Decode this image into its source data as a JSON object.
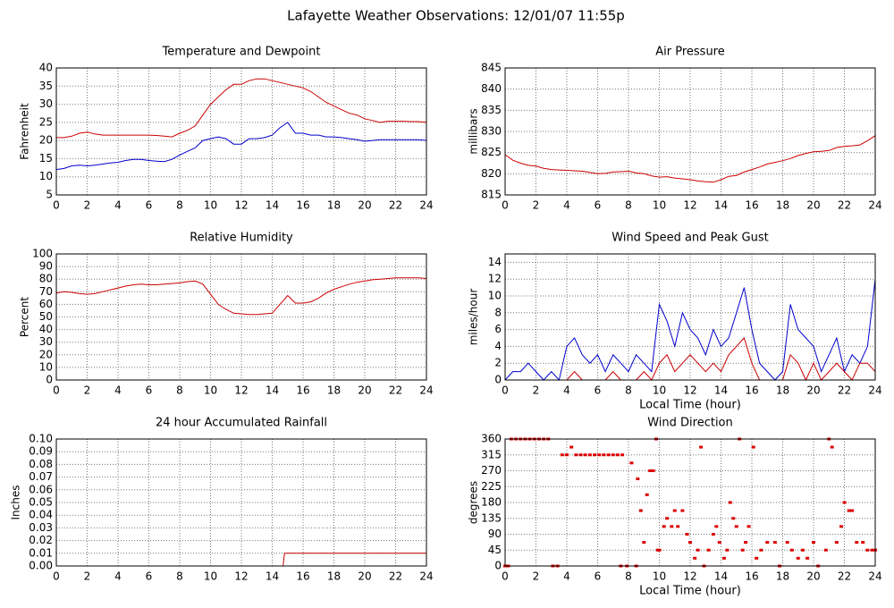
{
  "title": "Lafayette Weather Observations: 12/01/07 11:55p",
  "chart_data": [
    {
      "type": "line",
      "title": "Temperature and Dewpoint",
      "ylabel": "Fahrenheit",
      "xlim": [
        0,
        24
      ],
      "xticks": [
        0,
        2,
        4,
        6,
        8,
        10,
        12,
        14,
        16,
        18,
        20,
        22,
        24
      ],
      "ylim": [
        5,
        40
      ],
      "yticks": [
        5,
        10,
        15,
        20,
        25,
        30,
        35,
        40
      ],
      "grid": true,
      "x": [
        0,
        0.5,
        1,
        1.5,
        2,
        2.5,
        3,
        3.5,
        4,
        4.5,
        5,
        5.5,
        6,
        6.5,
        7,
        7.5,
        8,
        8.5,
        9,
        9.5,
        10,
        10.5,
        11,
        11.5,
        12,
        12.5,
        13,
        13.5,
        14,
        14.5,
        15,
        15.5,
        16,
        16.5,
        17,
        17.5,
        18,
        18.5,
        19,
        19.5,
        20,
        20.5,
        21,
        21.5,
        22,
        22.5,
        23,
        23.5,
        24
      ],
      "series": [
        {
          "color": "#cc0000",
          "values": [
            20.8,
            20.8,
            21.2,
            22,
            22.3,
            21.8,
            21.5,
            21.5,
            21.5,
            21.5,
            21.5,
            21.5,
            21.5,
            21.4,
            21.2,
            21,
            22,
            22.8,
            24,
            27,
            30,
            32,
            34,
            35.5,
            35.5,
            36.5,
            37,
            37,
            36.5,
            36,
            35.5,
            35,
            34.5,
            33.5,
            32,
            30.5,
            29.5,
            28.5,
            27.5,
            27,
            26,
            25.5,
            25,
            25.3,
            25.3,
            25.3,
            25.2,
            25.2,
            25
          ]
        },
        {
          "color": "#0000cc",
          "values": [
            12,
            12.3,
            13,
            13.2,
            13,
            13.2,
            13.5,
            13.8,
            14,
            14.5,
            14.8,
            14.8,
            14.5,
            14.3,
            14.2,
            14.8,
            16,
            17,
            18,
            20,
            20.5,
            21,
            20.5,
            19,
            19,
            20.5,
            20.5,
            20.8,
            21.5,
            23.5,
            25,
            22,
            22,
            21.5,
            21.5,
            21,
            21,
            20.8,
            20.5,
            20.2,
            19.8,
            20,
            20.2,
            20.2,
            20.2,
            20.2,
            20.2,
            20.2,
            20
          ]
        }
      ]
    },
    {
      "type": "line",
      "title": "Air Pressure",
      "ylabel": "millibars",
      "xlim": [
        0,
        24
      ],
      "xticks": [
        0,
        2,
        4,
        6,
        8,
        10,
        12,
        14,
        16,
        18,
        20,
        22,
        24
      ],
      "ylim": [
        815,
        845
      ],
      "yticks": [
        815,
        820,
        825,
        830,
        835,
        840,
        845
      ],
      "grid": true,
      "x": [
        0,
        0.5,
        1,
        1.5,
        2,
        2.5,
        3,
        3.5,
        4,
        4.5,
        5,
        5.5,
        6,
        6.5,
        7,
        7.5,
        8,
        8.5,
        9,
        9.5,
        10,
        10.5,
        11,
        11.5,
        12,
        12.5,
        13,
        13.5,
        14,
        14.5,
        15,
        15.5,
        16,
        16.5,
        17,
        17.5,
        18,
        18.5,
        19,
        19.5,
        20,
        20.5,
        21,
        21.5,
        22,
        22.5,
        23,
        23.5,
        24
      ],
      "series": [
        {
          "color": "#cc0000",
          "values": [
            824.5,
            823.2,
            822.5,
            822,
            821.8,
            821.3,
            821,
            820.9,
            820.8,
            820.7,
            820.6,
            820.3,
            820,
            820.1,
            820.4,
            820.5,
            820.6,
            820.2,
            820,
            819.5,
            819.2,
            819.3,
            819,
            818.8,
            818.6,
            818.3,
            818.1,
            818,
            818.6,
            819.4,
            819.6,
            820.4,
            821,
            821.6,
            822.3,
            822.7,
            823.1,
            823.6,
            824.3,
            824.8,
            825.2,
            825.3,
            825.5,
            826.2,
            826.5,
            826.6,
            826.8,
            827.8,
            829
          ]
        }
      ]
    },
    {
      "type": "line",
      "title": "Relative Humidity",
      "ylabel": "Percent",
      "xlim": [
        0,
        24
      ],
      "xticks": [
        0,
        2,
        4,
        6,
        8,
        10,
        12,
        14,
        16,
        18,
        20,
        22,
        24
      ],
      "ylim": [
        0,
        100
      ],
      "yticks": [
        0,
        10,
        20,
        30,
        40,
        50,
        60,
        70,
        80,
        90,
        100
      ],
      "grid": true,
      "x": [
        0,
        0.5,
        1,
        1.5,
        2,
        2.5,
        3,
        3.5,
        4,
        4.5,
        5,
        5.5,
        6,
        6.5,
        7,
        7.5,
        8,
        8.5,
        9,
        9.5,
        10,
        10.5,
        11,
        11.5,
        12,
        12.5,
        13,
        13.5,
        14,
        14.5,
        15,
        15.5,
        16,
        16.5,
        17,
        17.5,
        18,
        18.5,
        19,
        19.5,
        20,
        20.5,
        21,
        21.5,
        22,
        22.5,
        23,
        23.5,
        24
      ],
      "series": [
        {
          "color": "#cc0000",
          "values": [
            69,
            70,
            69.5,
            68.5,
            68,
            68.5,
            70,
            71.5,
            73,
            74.5,
            75.5,
            76,
            75.5,
            75.5,
            76,
            76.5,
            77,
            78,
            78.5,
            76,
            68,
            60,
            56,
            53,
            52.5,
            52,
            52,
            52.5,
            53,
            60,
            67,
            61,
            61,
            62,
            65,
            69,
            72,
            74,
            76,
            77.5,
            78.5,
            79.5,
            80,
            80.5,
            81,
            81,
            81,
            81,
            80.5
          ]
        }
      ]
    },
    {
      "type": "line",
      "title": "Wind Speed and Peak Gust",
      "ylabel": "miles/hour",
      "xlabel": "Local Time (hour)",
      "xlim": [
        0,
        24
      ],
      "xticks": [
        0,
        2,
        4,
        6,
        8,
        10,
        12,
        14,
        16,
        18,
        20,
        22,
        24
      ],
      "ylim": [
        0,
        15
      ],
      "yticks": [
        0,
        2,
        4,
        6,
        8,
        10,
        12,
        14
      ],
      "grid": true,
      "x": [
        0,
        0.5,
        1,
        1.5,
        2,
        2.5,
        3,
        3.5,
        4,
        4.5,
        5,
        5.5,
        6,
        6.5,
        7,
        7.5,
        8,
        8.5,
        9,
        9.5,
        10,
        10.5,
        11,
        11.5,
        12,
        12.5,
        13,
        13.5,
        14,
        14.5,
        15,
        15.5,
        16,
        16.5,
        17,
        17.5,
        18,
        18.5,
        19,
        19.5,
        20,
        20.5,
        21,
        21.5,
        22,
        22.5,
        23,
        23.5,
        24
      ],
      "series": [
        {
          "color": "#0000cc",
          "values": [
            0,
            1,
            1,
            2,
            1,
            0,
            1,
            0,
            4,
            5,
            3,
            2,
            3,
            1,
            3,
            2,
            1,
            3,
            2,
            1,
            9,
            7,
            4,
            8,
            6,
            5,
            3,
            6,
            4,
            5,
            8,
            11,
            6,
            2,
            1,
            0,
            1,
            9,
            6,
            5,
            4,
            1,
            3,
            5,
            1,
            3,
            2,
            4,
            12
          ]
        },
        {
          "color": "#cc0000",
          "values": [
            0,
            0,
            0,
            0,
            0,
            0,
            0,
            0,
            0,
            1,
            0,
            0,
            0,
            0,
            1,
            0,
            0,
            0,
            1,
            0,
            2,
            3,
            1,
            2,
            3,
            2,
            1,
            2,
            1,
            3,
            4,
            5,
            2,
            0,
            0,
            0,
            0,
            3,
            2,
            0,
            2,
            0,
            1,
            2,
            1,
            0,
            2,
            2,
            1
          ]
        }
      ]
    },
    {
      "type": "line",
      "title": "24 hour Accumulated Rainfall",
      "ylabel": "Inches",
      "xlim": [
        0,
        24
      ],
      "xticks": [
        0,
        2,
        4,
        6,
        8,
        10,
        12,
        14,
        16,
        18,
        20,
        22,
        24
      ],
      "ylim": [
        0,
        0.1
      ],
      "yticks": [
        {
          "value": 0,
          "label": "0.00"
        },
        0.01,
        0.02,
        0.03,
        0.04,
        0.05,
        0.06,
        0.07,
        0.08,
        0.09,
        {
          "value": 0.1,
          "label": "0.10"
        }
      ],
      "grid": true,
      "x": [
        0,
        14.7,
        14.8,
        15,
        24
      ],
      "series": [
        {
          "color": "#cc0000",
          "values": [
            0,
            0,
            0.01,
            0.01,
            0.01
          ]
        }
      ]
    },
    {
      "type": "scatter",
      "title": "Wind Direction",
      "ylabel": "degrees",
      "xlabel": "Local Time (hour)",
      "xlim": [
        0,
        24
      ],
      "xticks": [
        0,
        2,
        4,
        6,
        8,
        10,
        12,
        14,
        16,
        18,
        20,
        22,
        24
      ],
      "ylim": [
        0,
        360
      ],
      "yticks": [
        0,
        45,
        90,
        135,
        180,
        225,
        270,
        315,
        360
      ],
      "grid": true,
      "color": "#dd0000",
      "x": [
        0,
        0.2,
        0.4,
        0.7,
        1,
        1.3,
        1.6,
        1.9,
        2.2,
        2.5,
        2.8,
        3.1,
        3.4,
        3.7,
        4,
        4.3,
        4.6,
        4.9,
        5.2,
        5.5,
        5.8,
        6.1,
        6.4,
        6.7,
        7,
        7.3,
        7.6,
        7.5,
        7.9,
        8.2,
        8.5,
        8.6,
        8.8,
        9,
        9.2,
        9.4,
        9.6,
        9.8,
        9.9,
        10,
        10.3,
        10.5,
        10.8,
        11,
        11.2,
        11.5,
        11.8,
        12,
        12.3,
        12.5,
        12.7,
        12.9,
        13.2,
        13.5,
        13.7,
        13.9,
        14.2,
        14.4,
        14.6,
        14.8,
        15,
        15.2,
        15.4,
        15.6,
        15.8,
        16.1,
        16.3,
        16.6,
        17,
        17.5,
        17.8,
        18.3,
        18.6,
        19,
        19.3,
        19.6,
        20,
        20.3,
        20.8,
        21,
        21.2,
        21.5,
        21.8,
        22,
        22.3,
        22.5,
        22.8,
        23.2,
        23.5,
        23.8,
        24
      ],
      "values": [
        0,
        0,
        360,
        360,
        360,
        360,
        360,
        360,
        360,
        360,
        360,
        0,
        0,
        315,
        315,
        337,
        315,
        315,
        315,
        315,
        315,
        315,
        315,
        315,
        315,
        315,
        315,
        0,
        0,
        292,
        0,
        247,
        157,
        67,
        202,
        270,
        270,
        360,
        45,
        45,
        112,
        135,
        112,
        157,
        112,
        157,
        90,
        67,
        22,
        45,
        337,
        0,
        45,
        90,
        112,
        67,
        22,
        45,
        180,
        135,
        112,
        360,
        45,
        67,
        112,
        337,
        22,
        45,
        67,
        67,
        0,
        67,
        45,
        22,
        45,
        22,
        67,
        0,
        45,
        360,
        337,
        67,
        112,
        180,
        157,
        157,
        67,
        67,
        45,
        45,
        45
      ]
    }
  ]
}
